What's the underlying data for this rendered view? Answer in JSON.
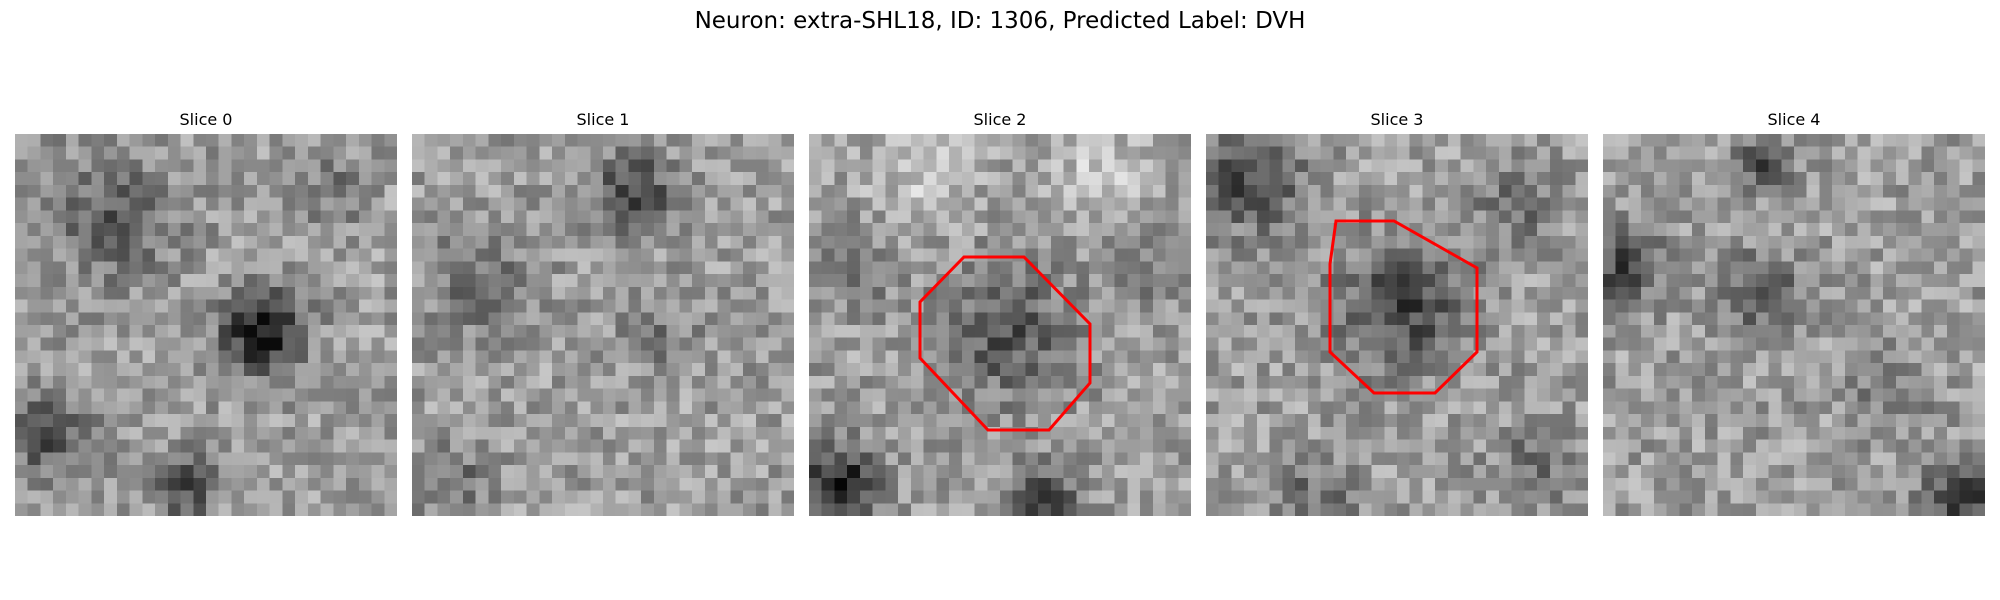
{
  "figure": {
    "title": "Neuron: extra-SHL18, ID: 1306, Predicted Label: DVH"
  },
  "panels": [
    {
      "title": "Slice 0",
      "has_roi": false
    },
    {
      "title": "Slice 1",
      "has_roi": false
    },
    {
      "title": "Slice 2",
      "has_roi": true
    },
    {
      "title": "Slice 3",
      "has_roi": true
    },
    {
      "title": "Slice 4",
      "has_roi": false
    }
  ],
  "colors": {
    "roi": "#ff0000",
    "colormap": "gray"
  }
}
